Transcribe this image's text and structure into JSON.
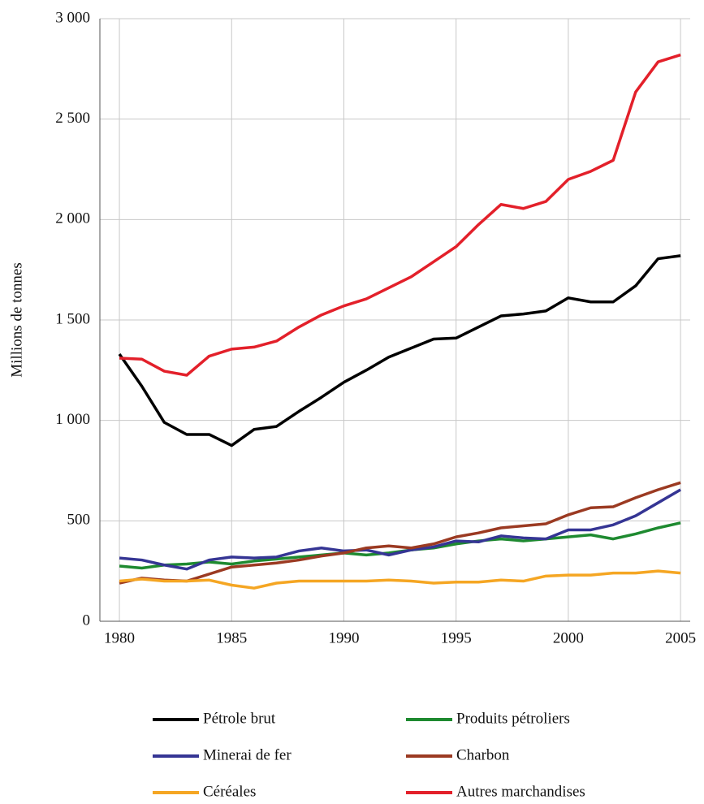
{
  "chart_data": {
    "type": "line",
    "y_label": "Millions de tonnes",
    "x": [
      1980,
      1981,
      1982,
      1983,
      1984,
      1985,
      1986,
      1987,
      1988,
      1989,
      1990,
      1991,
      1992,
      1993,
      1994,
      1995,
      1996,
      1997,
      1998,
      1999,
      2000,
      2001,
      2002,
      2003,
      2004,
      2005
    ],
    "xlim": [
      1979.13,
      2005.43
    ],
    "xticks": [
      1980,
      1985,
      1990,
      1995,
      2000,
      2005
    ],
    "ylim": [
      0,
      3000
    ],
    "yticks": [
      0,
      500,
      {
        "value": 1000,
        "label": "1 000"
      },
      {
        "value": 1500,
        "label": "1 500"
      },
      {
        "value": 2000,
        "label": "2 000"
      },
      {
        "value": 2500,
        "label": "2 500"
      },
      {
        "value": 3000,
        "label": "3 000"
      }
    ],
    "grid": true,
    "legend": "bottom",
    "series": [
      {
        "name": "Pétrole brut",
        "color": "#000000",
        "values": [
          1330,
          1170,
          990,
          930,
          930,
          875,
          955,
          970,
          1045,
          1115,
          1190,
          1250,
          1315,
          1360,
          1405,
          1410,
          1465,
          1520,
          1530,
          1545,
          1610,
          1590,
          1590,
          1670,
          1805,
          1820
        ]
      },
      {
        "name": "Produits pétroliers",
        "color": "#1e8a30",
        "values": [
          275,
          265,
          280,
          285,
          295,
          285,
          300,
          310,
          320,
          330,
          340,
          330,
          340,
          355,
          365,
          385,
          400,
          410,
          400,
          410,
          420,
          430,
          410,
          435,
          465,
          490
        ]
      },
      {
        "name": "Minerai de fer",
        "color": "#353594",
        "values": [
          315,
          305,
          280,
          260,
          305,
          320,
          315,
          320,
          350,
          365,
          350,
          355,
          330,
          355,
          370,
          400,
          395,
          425,
          415,
          410,
          455,
          455,
          480,
          525,
          590,
          655
        ]
      },
      {
        "name": "Charbon",
        "color": "#9b3a22",
        "values": [
          190,
          215,
          205,
          200,
          235,
          270,
          280,
          290,
          305,
          325,
          340,
          365,
          375,
          365,
          385,
          420,
          440,
          465,
          475,
          485,
          530,
          565,
          570,
          615,
          655,
          690
        ]
      },
      {
        "name": "Céréales",
        "color": "#f5a623",
        "values": [
          200,
          210,
          200,
          200,
          205,
          180,
          165,
          190,
          200,
          200,
          200,
          200,
          205,
          200,
          190,
          195,
          195,
          205,
          200,
          225,
          230,
          230,
          240,
          240,
          250,
          240
        ]
      },
      {
        "name": "Autres marchandises",
        "color": "#e3202a",
        "values": [
          1310,
          1305,
          1245,
          1225,
          1320,
          1355,
          1365,
          1395,
          1465,
          1525,
          1570,
          1605,
          1660,
          1715,
          1790,
          1865,
          1975,
          2075,
          2055,
          2090,
          2200,
          2240,
          2295,
          2635,
          2785,
          2820
        ]
      }
    ]
  }
}
